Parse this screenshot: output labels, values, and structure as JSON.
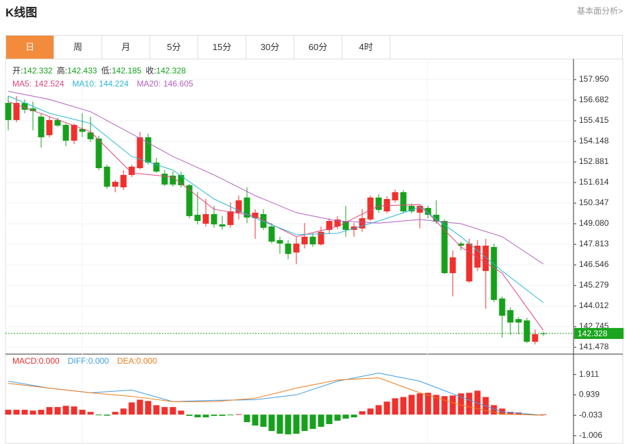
{
  "header": {
    "title": "K线图",
    "link": "基本面分析>"
  },
  "tabs": [
    "日",
    "周",
    "月",
    "5分",
    "15分",
    "30分",
    "60分",
    "4时"
  ],
  "active_tab": 0,
  "chart_data": [
    {
      "type": "candlestick",
      "ohlc_labels": [
        "开:",
        "高:",
        "低:",
        "收:"
      ],
      "up_color": "#f0302c",
      "down_color": "#16a11c",
      "candles": [
        [
          156.51,
          156.94,
          154.83,
          155.46
        ],
        [
          155.46,
          156.94,
          155.33,
          156.51
        ],
        [
          156.51,
          156.73,
          155.88,
          156.09
        ],
        [
          156.18,
          156.6,
          154.83,
          156.01
        ],
        [
          155.67,
          155.88,
          153.77,
          154.4
        ],
        [
          154.53,
          155.67,
          154.4,
          155.46
        ],
        [
          155.46,
          155.59,
          155.04,
          155.12
        ],
        [
          155.16,
          155.25,
          153.85,
          154.19
        ],
        [
          154.19,
          155.25,
          153.98,
          155.16
        ],
        [
          154.91,
          155.88,
          154.4,
          154.74
        ],
        [
          154.7,
          155.67,
          154.11,
          154.28
        ],
        [
          154.32,
          154.49,
          152.38,
          152.5
        ],
        [
          152.59,
          152.71,
          151.23,
          151.36
        ],
        [
          151.36,
          151.78,
          151.02,
          151.66
        ],
        [
          151.32,
          152.38,
          151.15,
          152.08
        ],
        [
          152.08,
          152.71,
          151.95,
          152.59
        ],
        [
          152.5,
          154.74,
          152.42,
          154.4
        ],
        [
          154.4,
          154.61,
          152.71,
          152.84
        ],
        [
          152.84,
          153.14,
          152.21,
          152.29
        ],
        [
          152.16,
          152.38,
          151.4,
          151.49
        ],
        [
          152.04,
          152.29,
          151.36,
          151.49
        ],
        [
          152.08,
          152.29,
          151.32,
          151.45
        ],
        [
          151.45,
          151.53,
          149.42,
          149.55
        ],
        [
          149.63,
          151.02,
          149.04,
          149.25
        ],
        [
          149.08,
          150.6,
          148.91,
          149.67
        ],
        [
          149.67,
          150.18,
          148.83,
          149.04
        ],
        [
          149.04,
          149.55,
          148.7,
          148.91
        ],
        [
          149.0,
          150.39,
          148.83,
          149.84
        ],
        [
          149.76,
          150.81,
          149.34,
          150.52
        ],
        [
          150.69,
          151.32,
          149.12,
          149.46
        ],
        [
          149.42,
          149.97,
          148.15,
          149.76
        ],
        [
          149.67,
          149.97,
          148.7,
          148.83
        ],
        [
          148.91,
          149.12,
          147.86,
          147.98
        ],
        [
          148.07,
          148.28,
          147.22,
          147.86
        ],
        [
          147.86,
          148.07,
          146.89,
          147.22
        ],
        [
          147.31,
          148.28,
          146.59,
          147.86
        ],
        [
          147.81,
          149.12,
          147.56,
          148.28
        ],
        [
          148.28,
          148.49,
          147.65,
          147.81
        ],
        [
          147.81,
          148.91,
          147.73,
          148.58
        ],
        [
          148.7,
          149.42,
          148.49,
          149.25
        ],
        [
          148.91,
          149.55,
          148.75,
          149.34
        ],
        [
          149.25,
          150.18,
          148.28,
          148.7
        ],
        [
          148.7,
          149.12,
          148.28,
          148.91
        ],
        [
          148.79,
          149.97,
          148.58,
          149.42
        ],
        [
          149.34,
          150.81,
          149.25,
          150.69
        ],
        [
          150.69,
          150.9,
          149.76,
          149.93
        ],
        [
          149.84,
          150.77,
          149.72,
          150.6
        ],
        [
          150.52,
          151.19,
          150.39,
          151.02
        ],
        [
          151.02,
          151.15,
          149.76,
          149.84
        ],
        [
          150.18,
          150.31,
          149.72,
          149.84
        ],
        [
          149.76,
          150.18,
          148.79,
          150.18
        ],
        [
          150.05,
          150.18,
          149.42,
          149.63
        ],
        [
          149.63,
          150.52,
          149.08,
          149.21
        ],
        [
          149.25,
          149.34,
          145.96,
          146.04
        ],
        [
          146.04,
          147.44,
          144.61,
          147.01
        ],
        [
          147.86,
          147.98,
          147.44,
          147.73
        ],
        [
          145.53,
          148.15,
          145.45,
          147.86
        ],
        [
          146.38,
          148.07,
          146.17,
          147.73
        ],
        [
          146.17,
          148.15,
          143.85,
          147.73
        ],
        [
          147.65,
          147.86,
          144.27,
          144.39
        ],
        [
          144.48,
          144.61,
          142.07,
          143.42
        ],
        [
          143.76,
          143.93,
          142.24,
          143.0
        ],
        [
          143.21,
          143.34,
          142.28,
          143.0
        ],
        [
          143.13,
          143.3,
          141.73,
          141.82
        ],
        [
          141.82,
          142.58,
          141.65,
          142.28
        ],
        [
          142.332,
          142.433,
          142.185,
          142.328
        ]
      ],
      "series": [
        {
          "name": "MA5:",
          "color": "#e0457c",
          "x": [
            0,
            5,
            10,
            15,
            20,
            25,
            30,
            35,
            40,
            45,
            50,
            55,
            60,
            65
          ],
          "values": [
            156.6,
            155.67,
            154.74,
            152.21,
            151.95,
            149.97,
            149.55,
            148.28,
            148.91,
            150.18,
            150.26,
            147.65,
            146.04,
            142.524
          ]
        },
        {
          "name": "MA10:",
          "color": "#2bb8d4",
          "x": [
            0,
            5,
            10,
            15,
            20,
            25,
            30,
            35,
            40,
            45,
            50,
            55,
            60,
            65
          ],
          "values": [
            156.94,
            155.88,
            155.25,
            153.22,
            152.38,
            150.6,
            149.42,
            148.41,
            148.49,
            149.25,
            150.09,
            148.28,
            146.17,
            144.224
          ]
        },
        {
          "name": "MA20:",
          "color": "#b35ec0",
          "x": [
            0,
            5,
            10,
            15,
            20,
            25,
            30,
            35,
            40,
            45,
            50,
            55,
            60,
            65
          ],
          "values": [
            157.23,
            156.73,
            155.97,
            154.61,
            153.22,
            152.08,
            150.81,
            149.76,
            149.25,
            149.12,
            149.34,
            149.08,
            148.28,
            146.605
          ]
        }
      ],
      "ylim": [
        141.1,
        159.13
      ],
      "yticks": [
        {
          "value": 157.95,
          "label": "157.950"
        },
        156.682,
        155.415,
        154.148,
        152.881,
        151.614,
        150.347,
        {
          "value": 149.08,
          "label": "149.080"
        },
        147.813,
        146.546,
        145.279,
        144.012,
        142.745,
        141.478
      ],
      "grid": true
    },
    {
      "type": "macd",
      "indicators": [
        {
          "name": "MACD:",
          "value": 0,
          "value_label": "0.000",
          "color": "#e0302c"
        },
        {
          "name": "DIFF:",
          "value": 0,
          "value_label": "0.000",
          "color": "#3d9be0"
        },
        {
          "name": "DEA:",
          "value": 0,
          "value_label": "0.000",
          "color": "#f07a18"
        }
      ],
      "up_color": "#f0302c",
      "down_color": "#16a11c",
      "bars": [
        0.23,
        0.23,
        0.23,
        0.19,
        0.23,
        0.36,
        0.36,
        0.42,
        0.39,
        0.23,
        0.13,
        -0.03,
        -0.05,
        0.13,
        0.29,
        0.58,
        0.71,
        0.65,
        0.45,
        0.36,
        0.36,
        0.19,
        -0.06,
        -0.13,
        -0.13,
        -0.06,
        -0.06,
        -0.02,
        0.02,
        -0.36,
        -0.52,
        -0.58,
        -0.78,
        -0.91,
        -0.94,
        -0.91,
        -0.78,
        -0.68,
        -0.58,
        -0.45,
        -0.29,
        -0.19,
        -0.13,
        0.16,
        0.29,
        0.45,
        0.62,
        0.78,
        0.84,
        0.94,
        1.01,
        1.04,
        0.94,
        0.88,
        0.91,
        1.01,
        1.04,
        1.14,
        0.84,
        0.45,
        0.29,
        0.13,
        0.1,
        0.03,
        -0.03,
        0.01
      ],
      "series": [
        {
          "name": "DIFF",
          "color": "#3d9be0",
          "x": [
            0,
            5,
            10,
            15,
            20,
            25,
            30,
            35,
            40,
            45,
            50,
            55,
            60,
            65
          ],
          "values": [
            1.59,
            1.26,
            1.04,
            1.17,
            0.62,
            0.68,
            0.71,
            0.94,
            1.59,
            1.98,
            1.59,
            0.84,
            0.13,
            -0.03
          ]
        },
        {
          "name": "DEA",
          "color": "#f07a18",
          "x": [
            0,
            5,
            10,
            15,
            20,
            25,
            30,
            35,
            40,
            45,
            50,
            55,
            60,
            65
          ],
          "values": [
            1.49,
            1.26,
            1.04,
            0.87,
            0.62,
            0.62,
            0.78,
            1.26,
            1.65,
            1.75,
            1.04,
            0.45,
            0.03,
            -0.03
          ]
        }
      ],
      "ylim": [
        -1.4,
        2.85
      ],
      "yticks": [
        1.911,
        0.939,
        -0.033,
        -1.006
      ]
    }
  ]
}
